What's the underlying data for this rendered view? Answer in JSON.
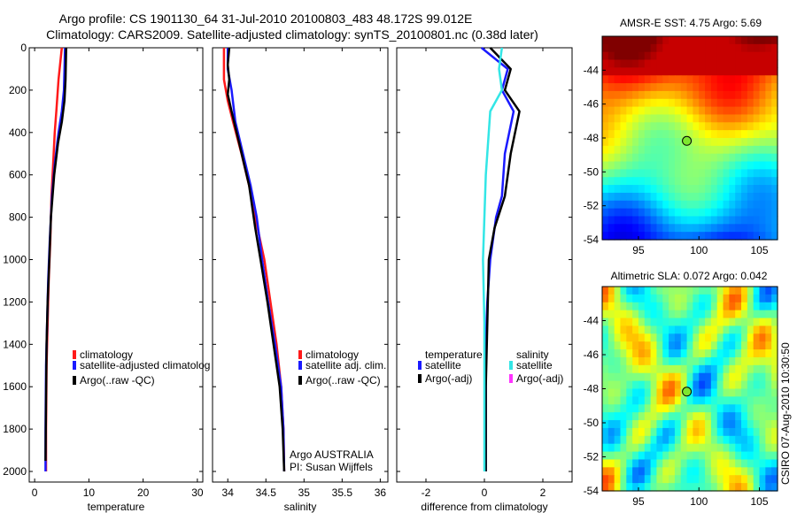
{
  "header": {
    "title_line1": "Argo profile: CS 1901130_64 31-Jul-2010 20100803_483 48.172S 99.012E",
    "title_line2": "Climatology: CARS2009. Satellite-adjusted climatology: synTS_20100801.nc (0.38d later)"
  },
  "footer": {
    "credit": "CSIRO 07-Aug-2010 10:30:50"
  },
  "colors": {
    "red": "#ff1a1a",
    "blue": "#1a1aff",
    "black": "#000000",
    "cyan": "#33e6e6",
    "magenta": "#ff33ff"
  },
  "chart_data": [
    {
      "type": "line",
      "id": "temp",
      "xlabel": "temperature",
      "ylabel": "",
      "xlim": [
        -1,
        31
      ],
      "ylim": [
        2050,
        0
      ],
      "xticks": [
        0,
        10,
        20,
        30
      ],
      "yticks": [
        0,
        200,
        400,
        600,
        800,
        1000,
        1200,
        1400,
        1600,
        1800,
        2000
      ],
      "legend": [
        "climatology",
        "satellite-adjusted climatolog",
        "Argo(..raw -QC)"
      ],
      "series": [
        {
          "name": "climatology",
          "color": "red",
          "x": [
            5.0,
            4.4,
            4.0,
            3.7,
            3.4,
            3.1,
            2.9,
            2.6,
            2.4,
            2.2,
            2.1,
            2.1
          ],
          "y": [
            0,
            150,
            300,
            400,
            550,
            700,
            900,
            1100,
            1300,
            1500,
            1800,
            2000
          ]
        },
        {
          "name": "satellite-adjusted climatolog",
          "color": "blue",
          "x": [
            5.6,
            5.4,
            5.0,
            4.4,
            3.7,
            3.2,
            2.8,
            2.5,
            2.3,
            2.1,
            2.0,
            2.0
          ],
          "y": [
            0,
            200,
            300,
            400,
            550,
            700,
            900,
            1100,
            1300,
            1500,
            1800,
            2000
          ]
        },
        {
          "name": "Argo(..raw -QC)",
          "color": "black",
          "x": [
            5.8,
            5.7,
            5.5,
            5.0,
            4.3,
            3.6,
            3.0,
            2.7,
            2.4,
            2.2,
            2.1,
            2.0
          ],
          "y": [
            0,
            150,
            250,
            350,
            450,
            600,
            800,
            1000,
            1200,
            1400,
            1650,
            1950
          ]
        }
      ]
    },
    {
      "type": "line",
      "id": "sal",
      "xlabel": "salinity",
      "ylabel": "",
      "xlim": [
        33.8,
        36.1
      ],
      "ylim": [
        2050,
        0
      ],
      "xticks": [
        34,
        34.5,
        35,
        35.5,
        36
      ],
      "xticklabels": [
        "34",
        "34.5",
        "35",
        "35.5",
        "36"
      ],
      "legend": [
        "climatology",
        "satellite adj. clim.",
        "Argo(..raw -QC)"
      ],
      "series": [
        {
          "name": "climatology",
          "color": "red",
          "x": [
            33.95,
            33.95,
            34.0,
            34.07,
            34.18,
            34.28,
            34.36,
            34.48,
            34.56,
            34.64,
            34.7,
            34.73,
            34.74
          ],
          "y": [
            0,
            150,
            250,
            350,
            500,
            650,
            800,
            1000,
            1200,
            1400,
            1600,
            1800,
            2000
          ]
        },
        {
          "name": "satellite adj. clim.",
          "color": "blue",
          "x": [
            34.0,
            34.0,
            34.05,
            34.1,
            34.2,
            34.3,
            34.38,
            34.45,
            34.53,
            34.62,
            34.7,
            34.73,
            34.74
          ],
          "y": [
            0,
            100,
            200,
            350,
            500,
            650,
            800,
            1000,
            1200,
            1400,
            1600,
            1800,
            2000
          ]
        },
        {
          "name": "Argo(..raw -QC)",
          "color": "black",
          "x": [
            34.02,
            34.0,
            34.02,
            34.0,
            34.05,
            34.15,
            34.28,
            34.36,
            34.43,
            34.52,
            34.6,
            34.68,
            34.72,
            34.74
          ],
          "y": [
            0,
            80,
            150,
            220,
            300,
            450,
            650,
            850,
            1000,
            1200,
            1400,
            1600,
            1800,
            2000
          ]
        }
      ]
    },
    {
      "type": "line",
      "id": "diff",
      "xlabel": "difference from climatology",
      "ylabel": "",
      "xlim": [
        -3,
        3
      ],
      "ylim": [
        2050,
        0
      ],
      "xticks": [
        -2,
        0,
        2
      ],
      "legend_temperature": {
        "heading": "temperature",
        "items": [
          "satellite",
          "Argo(-adj)"
        ]
      },
      "legend_salinity": {
        "heading": "salinity",
        "items": [
          "satellite",
          "Argo(-adj)"
        ]
      },
      "series": [
        {
          "name": "satellite",
          "group": "temperature",
          "color": "blue",
          "x": [
            -0.1,
            0.8,
            0.6,
            1.0,
            0.7,
            0.6,
            0.4,
            0.2,
            0.1,
            0.05,
            0.05,
            0.05
          ],
          "y": [
            0,
            100,
            200,
            300,
            500,
            700,
            800,
            1000,
            1200,
            1400,
            1700,
            2000
          ]
        },
        {
          "name": "Argo(-adj)",
          "group": "temperature",
          "color": "black",
          "x": [
            0.2,
            0.9,
            0.7,
            1.2,
            0.9,
            0.7,
            0.35,
            0.15,
            0.1,
            0.05,
            0.05
          ],
          "y": [
            0,
            100,
            200,
            300,
            500,
            700,
            850,
            1000,
            1300,
            1600,
            2000
          ]
        },
        {
          "name": "satellite",
          "group": "salinity",
          "color": "cyan",
          "x": [
            0.6,
            0.5,
            0.6,
            0.2,
            0.05,
            0.0,
            -0.05,
            0.0,
            0.0,
            0.0
          ],
          "y": [
            0,
            100,
            200,
            300,
            600,
            800,
            1000,
            1300,
            1600,
            2000
          ]
        },
        {
          "name": "Argo(-adj)",
          "group": "salinity",
          "color": "magenta",
          "x": [
            0.5,
            0.6,
            0.0,
            0.1,
            0.0,
            -0.1,
            0.0,
            0.0
          ],
          "y": [
            0,
            100,
            200,
            300,
            600,
            900,
            1300,
            2000
          ]
        }
      ]
    },
    {
      "type": "heatmap",
      "id": "sst",
      "title": "AMSR-E SST: 4.75 Argo: 5.69",
      "xlim": [
        92,
        106.5
      ],
      "ylim": [
        -54,
        -42
      ],
      "xticks": [
        95,
        100,
        105
      ],
      "yticks": [
        -44,
        -46,
        -48,
        -50,
        -52,
        -54
      ],
      "marker": {
        "lon": 99.0,
        "lat": -48.17
      }
    },
    {
      "type": "heatmap",
      "id": "sla",
      "title": "Altimetric SLA: 0.072 Argo: 0.042",
      "xlim": [
        92,
        106.5
      ],
      "ylim": [
        -54,
        -42
      ],
      "xticks": [
        95,
        100,
        105
      ],
      "yticks": [
        -44,
        -46,
        -48,
        -50,
        -52,
        -54
      ],
      "marker": {
        "lon": 99.0,
        "lat": -48.17
      }
    }
  ]
}
